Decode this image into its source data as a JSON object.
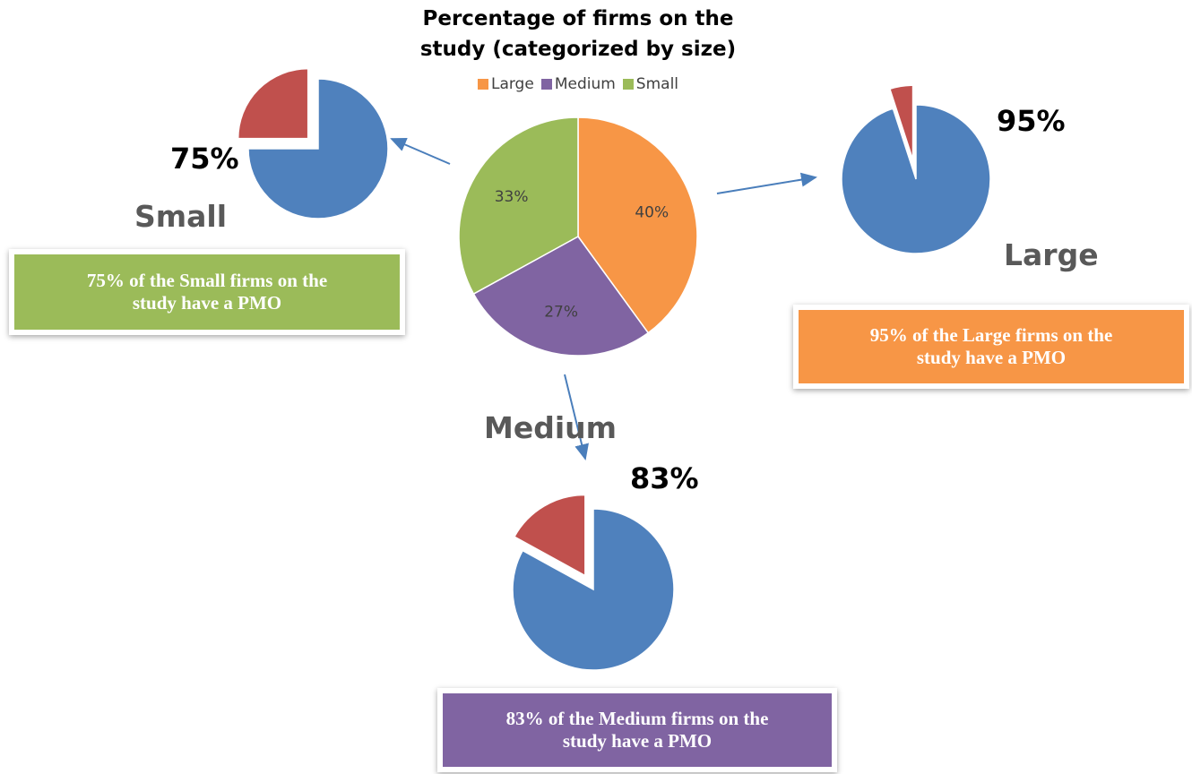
{
  "chart_data": [
    {
      "type": "pie",
      "title": "Percentage of firms on the study (categorized by size)",
      "categories": [
        "Large",
        "Medium",
        "Small"
      ],
      "values": [
        40,
        27,
        33
      ],
      "value_labels": [
        "40%",
        "27%",
        "33%"
      ],
      "colors": [
        "#f79646",
        "#8064a2",
        "#9bbb59"
      ],
      "legend": "top"
    },
    {
      "type": "pie",
      "title": "Small",
      "values": [
        75,
        25
      ],
      "value_labels": [
        "75%",
        null
      ],
      "colors": [
        "#4f81bd",
        "#c0504d"
      ],
      "annotation": "75% of the Small firms on the study have a PMO",
      "annotation_color": "#9bbb59"
    },
    {
      "type": "pie",
      "title": "Large",
      "values": [
        95,
        5
      ],
      "value_labels": [
        "95%",
        null
      ],
      "colors": [
        "#4f81bd",
        "#c0504d"
      ],
      "annotation": "95% of the Large firms on the study have a PMO",
      "annotation_color": "#f79646"
    },
    {
      "type": "pie",
      "title": "Medium",
      "values": [
        83,
        17
      ],
      "value_labels": [
        "83%",
        null
      ],
      "colors": [
        "#4f81bd",
        "#c0504d"
      ],
      "annotation": "83% of the Medium firms on the study have a PMO",
      "annotation_color": "#8064a2"
    }
  ]
}
